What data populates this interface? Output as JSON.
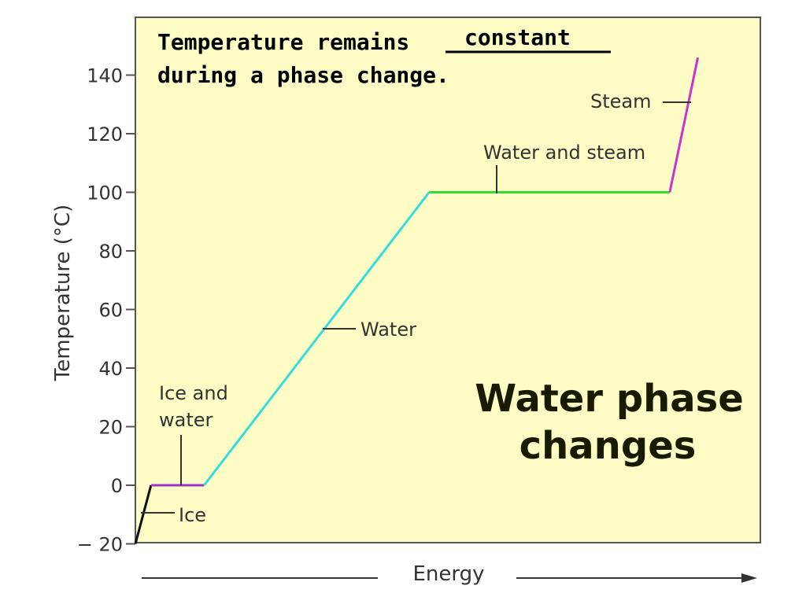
{
  "annotation": {
    "line1_prefix": "Temperature remains",
    "blank_answer": "constant",
    "line2": "during a phase change."
  },
  "caption": {
    "line1": "Water phase",
    "line2": "changes"
  },
  "colors": {
    "plot_background": "#fdfcc4",
    "ice": "#111111",
    "ice_and_water": "#9933cc",
    "water": "#33dddd",
    "water_and_steam": "#33dd33",
    "steam": "#cc33cc",
    "axis": "#555555"
  },
  "chart_data": {
    "type": "line",
    "title": "",
    "xlabel": "Energy",
    "ylabel": "Temperature (°C)",
    "ylim": [
      -20,
      140
    ],
    "yticks": [
      "140",
      "120",
      "100",
      "80",
      "60",
      "40",
      "20",
      "0",
      "− 20"
    ],
    "ytick_values": [
      140,
      120,
      100,
      80,
      60,
      40,
      20,
      0,
      -20
    ],
    "x_axis_numeric": false,
    "x_arrow": true,
    "grid": false,
    "series": [
      {
        "name": "Ice",
        "x": [
          0.0,
          0.025
        ],
        "y": [
          -20,
          0
        ]
      },
      {
        "name": "Ice and water",
        "x": [
          0.025,
          0.11
        ],
        "y": [
          0,
          0
        ]
      },
      {
        "name": "Water",
        "x": [
          0.11,
          0.47
        ],
        "y": [
          0,
          100
        ]
      },
      {
        "name": "Water and steam",
        "x": [
          0.47,
          0.855
        ],
        "y": [
          100,
          100
        ]
      },
      {
        "name": "Steam",
        "x": [
          0.855,
          0.9
        ],
        "y": [
          100,
          146
        ]
      }
    ],
    "segment_labels": {
      "ice": "Ice",
      "ice_and_water_1": "Ice and",
      "ice_and_water_2": "water",
      "water": "Water",
      "water_and_steam": "Water and steam",
      "steam": "Steam"
    }
  }
}
